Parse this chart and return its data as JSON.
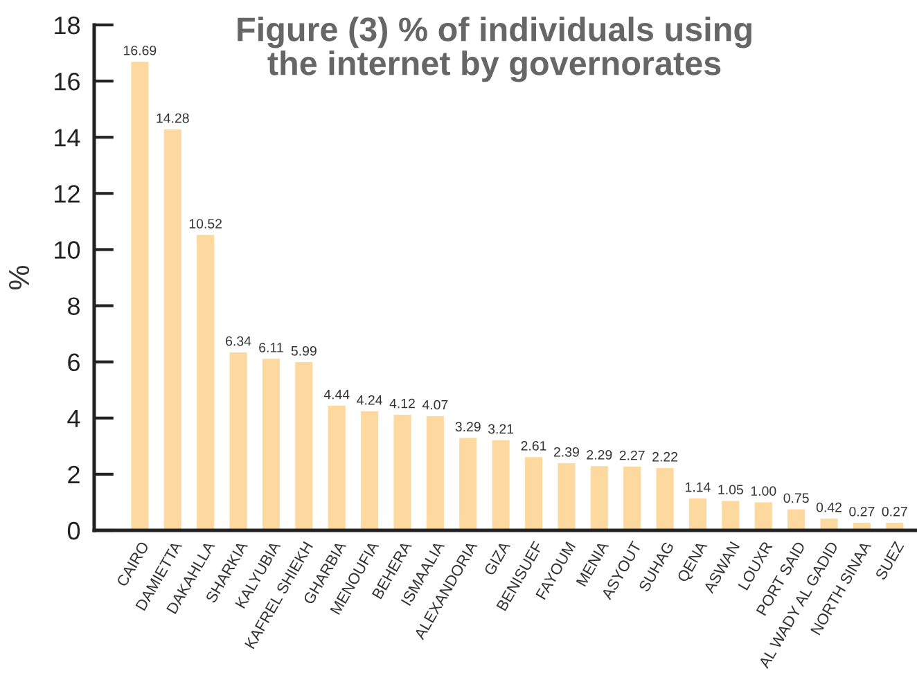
{
  "chart_data": {
    "type": "bar",
    "title": "Figure (3) % of individuals using the internet by governorates",
    "ylabel": "%",
    "categories": [
      "CAIRO",
      "DAMIETTA",
      "DAKAHLLA",
      "SHARKIA",
      "KALYUBIA",
      "KAFREL SHIEKH",
      "GHARBIA",
      "MENOUFIA",
      "BEHERA",
      "ISMAALIA",
      "ALEXANDORIA",
      "GIZA",
      "BENISUEF",
      "FAYOUM",
      "MENIA",
      "ASYOUT",
      "SUHAG",
      "QENA",
      "ASWAN",
      "LOUXR",
      "PORT SAID",
      "AL WADY AL GADID",
      "NORTH SINAA",
      "SUEZ"
    ],
    "values": [
      16.69,
      14.28,
      10.52,
      6.34,
      6.11,
      5.99,
      4.44,
      4.24,
      4.12,
      4.07,
      3.29,
      3.21,
      2.61,
      2.39,
      2.29,
      2.27,
      2.22,
      1.14,
      1.05,
      1.0,
      0.75,
      0.42,
      0.27,
      0.27
    ],
    "value_labels": [
      "16.69",
      "14.28",
      "10.52",
      "6.34",
      "6.11",
      "5.99",
      "4.44",
      "4.24",
      "4.12",
      "4.07",
      "3.29",
      "3.21",
      "2.61",
      "2.39",
      "2.29",
      "2.27",
      "2.22",
      "1.14",
      "1.05",
      "1.00",
      "0.75",
      "0.42",
      "0.27",
      "0.27"
    ],
    "color": "#fdd9a0",
    "ylim": [
      0,
      18
    ],
    "yticks": [
      0,
      2,
      4,
      6,
      8,
      10,
      12,
      14,
      16,
      18
    ]
  }
}
